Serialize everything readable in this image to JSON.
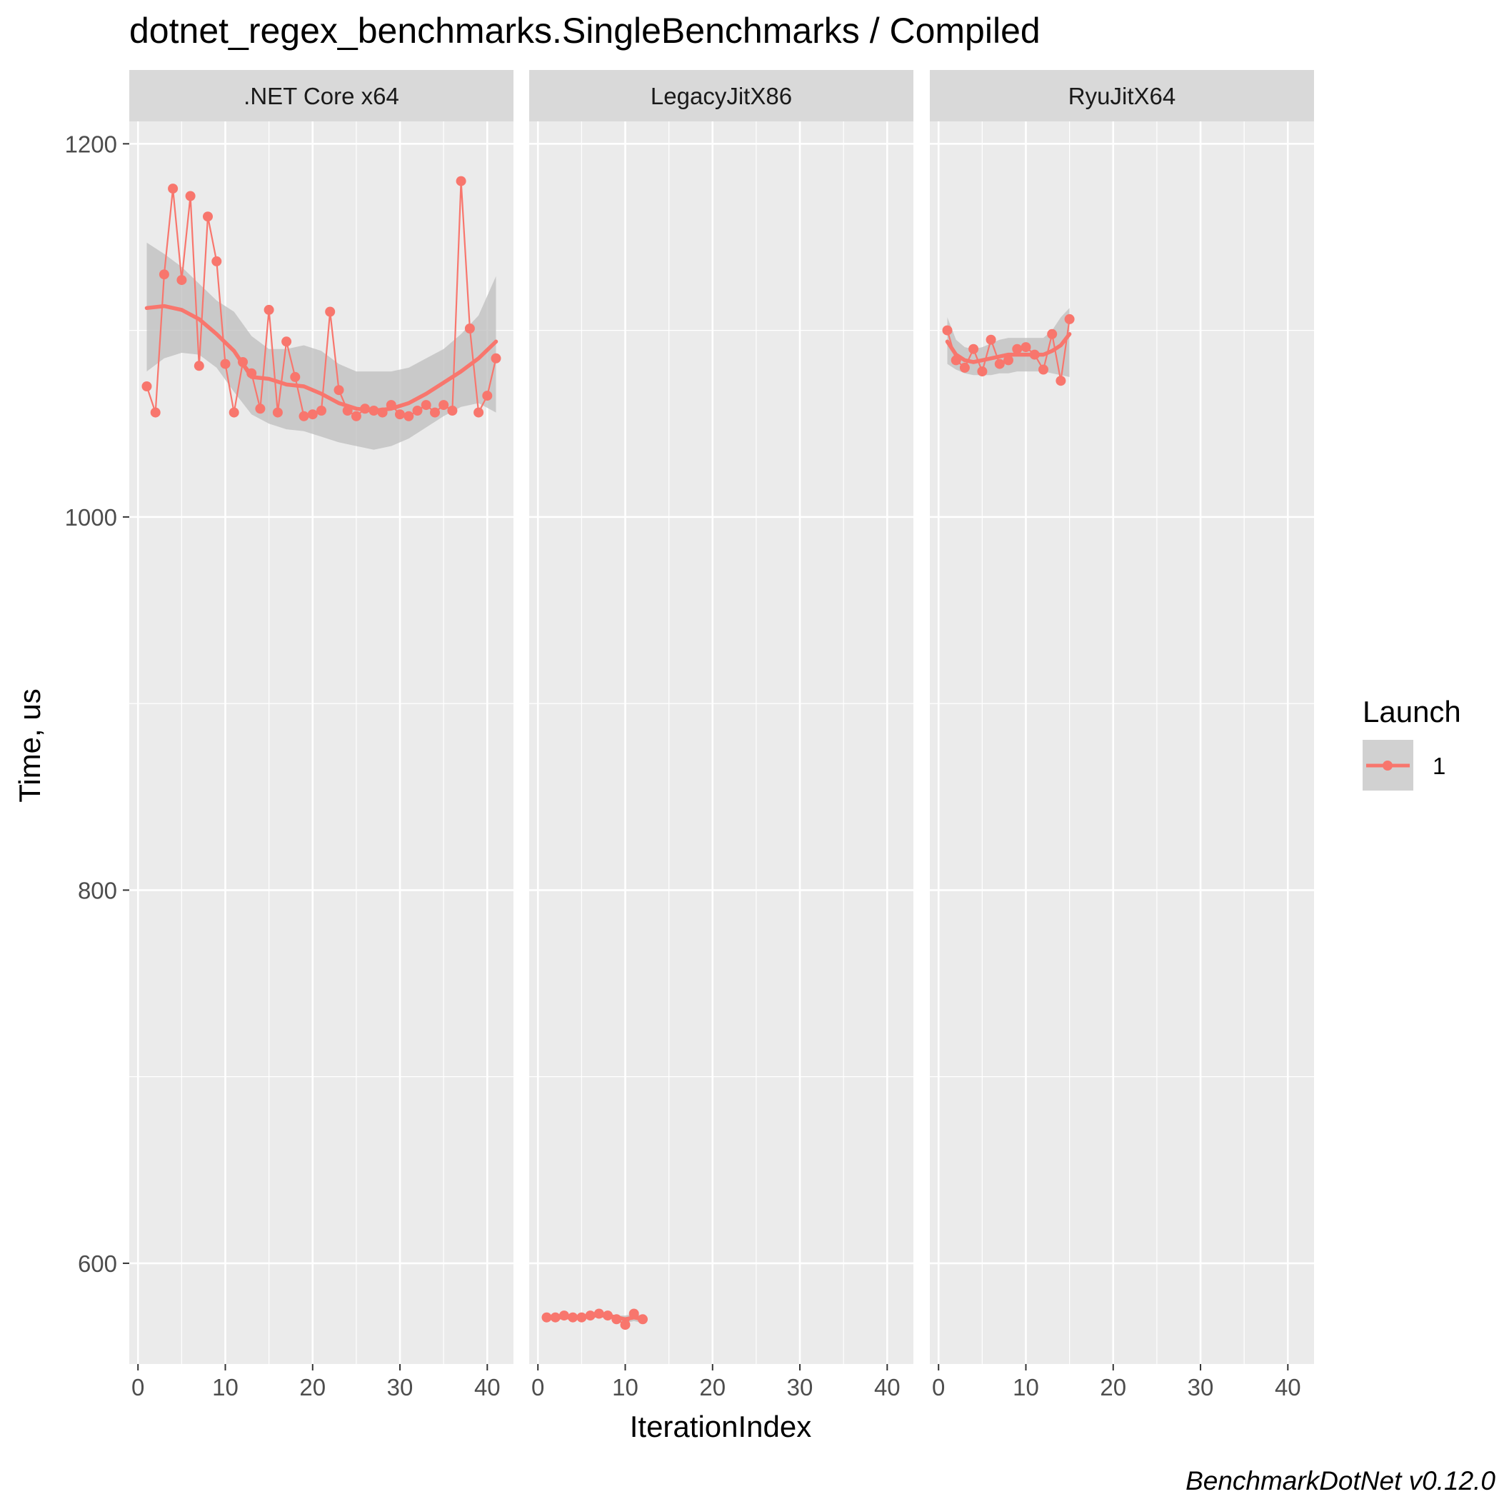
{
  "chart_data": {
    "type": "line",
    "title": "dotnet_regex_benchmarks.SingleBenchmarks / Compiled",
    "xlabel": "IterationIndex",
    "ylabel": "Time, us",
    "caption": "BenchmarkDotNet v0.12.0",
    "xlim": [
      -1,
      43
    ],
    "ylim": [
      546,
      1212
    ],
    "x_ticks": [
      0,
      10,
      20,
      30,
      40
    ],
    "y_ticks": [
      600,
      800,
      1000,
      1200
    ],
    "grid": true,
    "legend": {
      "title": "Launch",
      "entries": [
        "1"
      ],
      "placement": "right"
    },
    "colors": {
      "series": "#F8766D",
      "ribbon": "#bdbdbd",
      "panel": "#ebebeb",
      "strip": "#d9d9d9",
      "grid": "#ffffff"
    },
    "panels": [
      {
        "name": ".NET Core x64",
        "x": [
          1,
          2,
          3,
          4,
          5,
          6,
          7,
          8,
          9,
          10,
          11,
          12,
          13,
          14,
          15,
          16,
          17,
          18,
          19,
          20,
          21,
          22,
          23,
          24,
          25,
          26,
          27,
          28,
          29,
          30,
          31,
          32,
          33,
          34,
          35,
          36,
          37,
          38,
          39,
          40,
          41
        ],
        "values": [
          1070,
          1056,
          1130,
          1176,
          1127,
          1172,
          1081,
          1161,
          1137,
          1082,
          1056,
          1083,
          1077,
          1058,
          1111,
          1056,
          1094,
          1075,
          1054,
          1055,
          1057,
          1110,
          1068,
          1057,
          1054,
          1058,
          1057,
          1056,
          1060,
          1055,
          1054,
          1057,
          1060,
          1056,
          1060,
          1057,
          1180,
          1101,
          1056,
          1065,
          1085
        ],
        "smooth_x": [
          1,
          3,
          5,
          7,
          9,
          11,
          13,
          15,
          17,
          19,
          21,
          23,
          25,
          27,
          29,
          31,
          33,
          35,
          37,
          39,
          41
        ],
        "smooth": [
          1112,
          1113,
          1111,
          1106,
          1098,
          1089,
          1075,
          1074,
          1071,
          1070,
          1066,
          1061,
          1058,
          1057,
          1058,
          1061,
          1066,
          1072,
          1078,
          1085,
          1094
        ],
        "ribbon_lower": [
          1078,
          1085,
          1088,
          1087,
          1080,
          1067,
          1055,
          1050,
          1047,
          1046,
          1043,
          1040,
          1038,
          1036,
          1038,
          1042,
          1048,
          1054,
          1059,
          1061,
          1056
        ],
        "ribbon_upper": [
          1147,
          1141,
          1134,
          1125,
          1116,
          1110,
          1097,
          1090,
          1090,
          1092,
          1089,
          1082,
          1078,
          1078,
          1078,
          1080,
          1085,
          1090,
          1098,
          1108,
          1129
        ]
      },
      {
        "name": "LegacyJitX86",
        "x": [
          1,
          2,
          3,
          4,
          5,
          6,
          7,
          8,
          9,
          10,
          11,
          12
        ],
        "values": [
          571,
          571,
          572,
          571,
          571,
          572,
          573,
          572,
          570,
          567,
          573,
          570
        ],
        "smooth_x": [
          1,
          2,
          3,
          4,
          5,
          6,
          7,
          8,
          9,
          10,
          11,
          12
        ],
        "smooth": [
          571,
          571,
          571,
          571,
          571,
          572,
          572,
          572,
          571,
          570,
          571,
          570
        ],
        "ribbon_lower": [
          569,
          570,
          570,
          570,
          570,
          571,
          571,
          571,
          570,
          568,
          569,
          568
        ],
        "ribbon_upper": [
          573,
          572,
          572,
          572,
          572,
          573,
          573,
          573,
          572,
          572,
          573,
          572
        ]
      },
      {
        "name": "RyuJitX64",
        "x": [
          1,
          2,
          3,
          4,
          5,
          6,
          7,
          8,
          9,
          10,
          11,
          12,
          13,
          14,
          15
        ],
        "values": [
          1100,
          1084,
          1080,
          1090,
          1078,
          1095,
          1082,
          1084,
          1090,
          1091,
          1087,
          1079,
          1098,
          1073,
          1106
        ],
        "smooth_x": [
          1,
          2,
          3,
          4,
          5,
          6,
          7,
          8,
          9,
          10,
          11,
          12,
          13,
          14,
          15
        ],
        "smooth": [
          1094,
          1087,
          1084,
          1083,
          1084,
          1085,
          1086,
          1087,
          1087,
          1087,
          1087,
          1087,
          1089,
          1092,
          1098
        ],
        "ribbon_lower": [
          1082,
          1079,
          1077,
          1076,
          1076,
          1076,
          1077,
          1077,
          1078,
          1078,
          1078,
          1078,
          1077,
          1076,
          1075
        ],
        "ribbon_upper": [
          1107,
          1095,
          1091,
          1090,
          1091,
          1093,
          1095,
          1096,
          1096,
          1096,
          1096,
          1096,
          1100,
          1107,
          1112
        ]
      }
    ]
  }
}
